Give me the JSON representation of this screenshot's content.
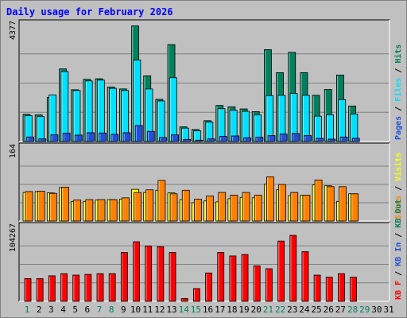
{
  "chart_data": {
    "type": "bar",
    "title": "Daily usage for February 2026",
    "categories": [
      "1",
      "2",
      "3",
      "4",
      "5",
      "6",
      "7",
      "8",
      "9",
      "10",
      "11",
      "12",
      "13",
      "14",
      "15",
      "16",
      "17",
      "18",
      "19",
      "20",
      "21",
      "22",
      "23",
      "24",
      "25",
      "26",
      "27",
      "28",
      "29",
      "30",
      "31"
    ],
    "weekend_days": [
      "1",
      "7",
      "8",
      "14",
      "15",
      "21",
      "22",
      "28",
      "29"
    ],
    "panels": [
      {
        "id": "hits",
        "ymax": 4377,
        "ymax_label": "4377",
        "axis_labels": [
          "Pages",
          "Files",
          "Hits"
        ],
        "series": [
          {
            "name": "Hits",
            "color": "#00805c",
            "values": [
              1020,
              1000,
              1650,
              2720,
              1940,
              2330,
              2350,
              2040,
              1970,
              4330,
              2460,
              1580,
              3630,
              550,
              450,
              780,
              1350,
              1300,
              1220,
              1120,
              3440,
              2580,
              3340,
              2580,
              1730,
              1950,
              2490,
              1330
            ]
          },
          {
            "name": "Files",
            "color": "#00e0ff",
            "values": [
              970,
              940,
              1740,
              2620,
              1910,
              2270,
              2300,
              1990,
              1910,
              3050,
              1970,
              1520,
              2390,
              500,
              400,
              730,
              1230,
              1170,
              1130,
              1000,
              1720,
              1730,
              1800,
              1730,
              950,
              1000,
              1570,
              1030
            ]
          },
          {
            "name": "Pages",
            "color": "#2050d8",
            "values": [
              170,
              100,
              250,
              310,
              240,
              330,
              320,
              270,
              330,
              600,
              380,
              150,
              250,
              80,
              50,
              100,
              190,
              210,
              140,
              160,
              220,
              280,
              300,
              220,
              120,
              90,
              170,
              120
            ]
          }
        ]
      },
      {
        "id": "visits",
        "ymax": 164,
        "ymax_label": "164",
        "axis_labels": [
          "Sites",
          "Visits"
        ],
        "series": [
          {
            "name": "Visits",
            "color": "#ffff00",
            "values": [
              64,
              66,
              63,
              75,
              44,
              44,
              47,
              48,
              49,
              71,
              64,
              69,
              63,
              48,
              41,
              45,
              43,
              50,
              53,
              52,
              83,
              70,
              57,
              58,
              81,
              79,
              44,
              61
            ]
          },
          {
            "name": "Sites",
            "color": "#ff8000",
            "values": [
              66,
              67,
              62,
              76,
              47,
              48,
              48,
              48,
              52,
              64,
              70,
              91,
              61,
              69,
              49,
              56,
              64,
              58,
              64,
              58,
              99,
              82,
              64,
              58,
              92,
              77,
              77,
              61
            ]
          }
        ]
      },
      {
        "id": "kbytes",
        "ymax": 104267,
        "ymax_label": "104267",
        "axis_labels": [
          "KB F",
          "KB In",
          "KB Out"
        ],
        "series": [
          {
            "name": "KB F",
            "color": "#ff0000",
            "values": [
              32000,
              32000,
              36000,
              39000,
              37000,
              38000,
              39000,
              39000,
              69000,
              84000,
              78000,
              77000,
              69000,
              4000,
              18000,
              40000,
              69000,
              64000,
              66000,
              50000,
              46000,
              85000,
              93000,
              70000,
              37000,
              34000,
              39000,
              34000
            ]
          }
        ]
      }
    ]
  }
}
